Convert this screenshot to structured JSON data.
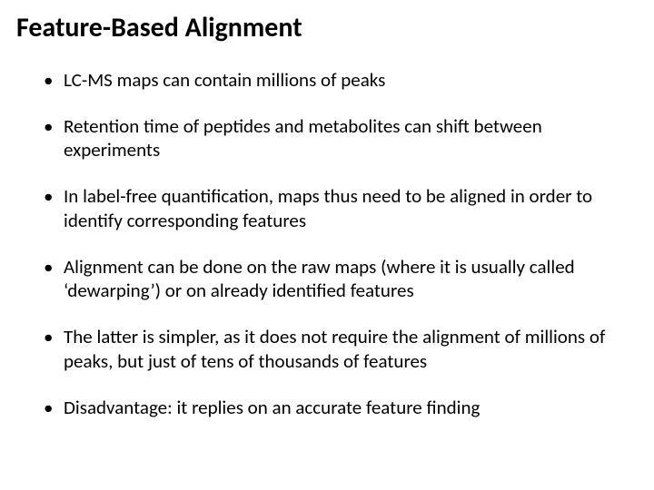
{
  "title": "Feature-Based Alignment",
  "title_fontsize": 30,
  "title_weight": 700,
  "bullet_fontsize": 21,
  "text_color": "#000000",
  "background_color": "#ffffff",
  "bullets": [
    "LC-MS maps can contain millions of peaks",
    "Retention time of peptides and metabolites can shift between experiments",
    "In label-free quantification, maps thus need to be aligned in order to identify corresponding features",
    "Alignment can be done on the raw maps (where it is usually called ‘dewarping’) or on already identified features",
    "The latter is simpler, as it does not require the alignment of millions of peaks, but just of tens of thousands of features",
    "Disadvantage: it replies on an accurate feature finding"
  ]
}
